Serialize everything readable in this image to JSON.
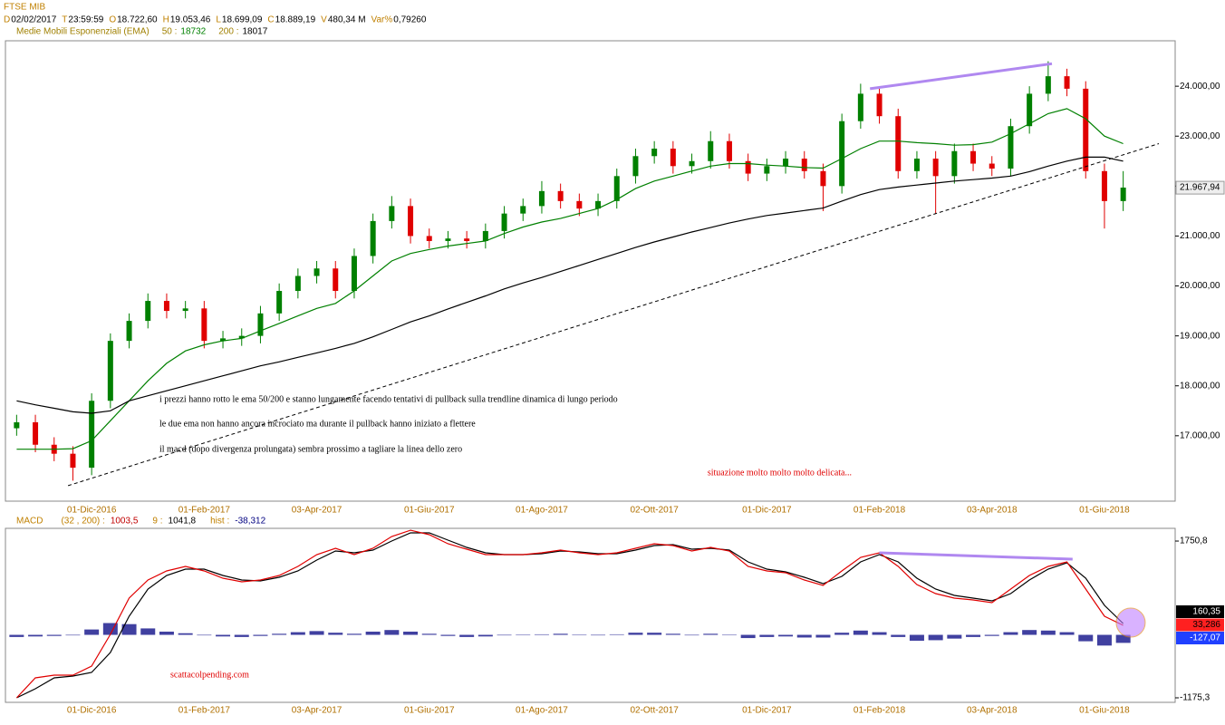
{
  "header": {
    "title": "FTSE MIB",
    "fields": [
      {
        "label": "D",
        "value": "02/02/2017"
      },
      {
        "label": "T",
        "value": "23:59:59"
      },
      {
        "label": "O",
        "value": "18.722,60"
      },
      {
        "label": "H",
        "value": "19.053,46"
      },
      {
        "label": "L",
        "value": "18.699,09"
      },
      {
        "label": "C",
        "value": "18.889,19"
      },
      {
        "label": "V",
        "value": "480,34 M"
      },
      {
        "label": "Var%",
        "value": "0,79260"
      }
    ],
    "ema": {
      "label": "Medie Mobili Esponenziali (EMA)",
      "items": [
        {
          "label": "50 :",
          "value": "18732",
          "color": "#008000"
        },
        {
          "label": "200 :",
          "value": "18017",
          "color": "#000000"
        }
      ]
    }
  },
  "chart_data": [
    {
      "type": "candlestick",
      "categories": [
        null,
        null,
        null,
        null,
        "01-Dic-2016",
        null,
        null,
        null,
        null,
        null,
        "01-Feb-2017",
        null,
        null,
        null,
        null,
        null,
        "03-Apr-2017",
        null,
        null,
        null,
        null,
        null,
        "01-Giu-2017",
        null,
        null,
        null,
        null,
        null,
        "01-Ago-2017",
        null,
        null,
        null,
        null,
        null,
        "02-Ott-2017",
        null,
        null,
        null,
        null,
        null,
        "01-Dic-2017",
        null,
        null,
        null,
        null,
        null,
        "01-Feb-2018",
        null,
        null,
        null,
        null,
        null,
        "03-Apr-2018",
        null,
        null,
        null,
        null,
        null,
        "01-Giu-2018",
        null
      ],
      "open": [
        17150,
        17270,
        16820,
        16640,
        16360,
        17700,
        18900,
        19300,
        19700,
        19500,
        19550,
        18900,
        18950,
        19000,
        19450,
        19900,
        20200,
        20350,
        19900,
        20600,
        21300,
        21600,
        21000,
        20900,
        20950,
        20900,
        21100,
        21450,
        21600,
        21900,
        21700,
        21550,
        21700,
        22200,
        22600,
        22750,
        22400,
        22500,
        22900,
        22500,
        22250,
        22400,
        22550,
        22300,
        22000,
        23300,
        23850,
        23400,
        22300,
        22550,
        22200,
        22700,
        22450,
        22350,
        23200,
        23850,
        24200,
        23950,
        22300,
        21700
      ],
      "high": [
        17420,
        17420,
        16970,
        16790,
        17850,
        19050,
        19450,
        19850,
        19850,
        19700,
        19700,
        19100,
        19150,
        19600,
        20050,
        20350,
        20500,
        20500,
        20750,
        21450,
        21800,
        21750,
        21150,
        21100,
        21100,
        21250,
        21600,
        21750,
        22100,
        22050,
        21850,
        21850,
        22350,
        22750,
        22900,
        22900,
        22650,
        23100,
        23050,
        22650,
        22550,
        22700,
        22700,
        22450,
        23450,
        24050,
        24000,
        23550,
        22700,
        22700,
        22850,
        22850,
        22600,
        23350,
        24000,
        24500,
        24350,
        24100,
        22450,
        22300
      ],
      "low": [
        17000,
        16670,
        16490,
        16100,
        16210,
        17550,
        18750,
        19150,
        19350,
        19350,
        18750,
        18750,
        18800,
        18850,
        19300,
        19750,
        20050,
        19750,
        19750,
        20450,
        21150,
        20850,
        20750,
        20750,
        20750,
        20750,
        20950,
        21300,
        21450,
        21550,
        21400,
        21400,
        21550,
        22050,
        22450,
        22250,
        22250,
        22350,
        22350,
        22100,
        22100,
        22250,
        22150,
        21500,
        21850,
        23150,
        23250,
        22150,
        22150,
        21450,
        22050,
        22300,
        22200,
        22200,
        23050,
        23700,
        23800,
        22150,
        21150,
        21500
      ],
      "close": [
        17270,
        16820,
        16640,
        16360,
        17700,
        18900,
        19300,
        19700,
        19500,
        19550,
        18900,
        18950,
        19000,
        19450,
        19900,
        20200,
        20350,
        19900,
        20600,
        21300,
        21600,
        21000,
        20900,
        20950,
        20900,
        21100,
        21450,
        21600,
        21900,
        21700,
        21550,
        21700,
        22200,
        22600,
        22750,
        22400,
        22500,
        22900,
        22500,
        22250,
        22400,
        22550,
        22300,
        22000,
        23300,
        23850,
        23400,
        22300,
        22550,
        22200,
        22700,
        22450,
        22350,
        23200,
        23850,
        24200,
        23950,
        22300,
        21700,
        21970
      ],
      "up_color": "#008000",
      "down_color": "#e00000",
      "series": [
        {
          "color": "#008000",
          "values": [
            16730,
            16730,
            16730,
            16740,
            16900,
            17300,
            17700,
            18100,
            18450,
            18700,
            18820,
            18900,
            18950,
            19100,
            19250,
            19400,
            19550,
            19650,
            19900,
            20200,
            20500,
            20650,
            20730,
            20800,
            20850,
            20900,
            21050,
            21180,
            21280,
            21350,
            21450,
            21550,
            21730,
            21950,
            22100,
            22200,
            22300,
            22400,
            22450,
            22450,
            22420,
            22400,
            22370,
            22360,
            22550,
            22750,
            22900,
            22900,
            22870,
            22850,
            22820,
            22830,
            22880,
            23050,
            23250,
            23450,
            23550,
            23350,
            23000,
            22850
          ]
        },
        {
          "color": "#000000",
          "values": [
            17700,
            17620,
            17550,
            17480,
            17450,
            17500,
            17700,
            17800,
            17900,
            18000,
            18100,
            18200,
            18300,
            18400,
            18480,
            18570,
            18660,
            18750,
            18850,
            18980,
            19130,
            19280,
            19400,
            19540,
            19670,
            19800,
            19940,
            20060,
            20170,
            20290,
            20410,
            20530,
            20650,
            20770,
            20880,
            20980,
            21080,
            21170,
            21260,
            21340,
            21410,
            21460,
            21510,
            21560,
            21700,
            21830,
            21930,
            21980,
            22020,
            22060,
            22100,
            22130,
            22160,
            22200,
            22290,
            22400,
            22500,
            22580,
            22580,
            22500
          ]
        }
      ],
      "lines": [
        {
          "x": [
            2.74,
            60.9
          ],
          "values": [
            16000,
            22850
          ],
          "color": "#000000",
          "dashed": true
        },
        {
          "x": [
            45.5,
            55.2
          ],
          "values": [
            23950,
            24450
          ],
          "color": "#b088f0",
          "dashed": false
        }
      ],
      "last_price": {
        "value": 21967.94,
        "label": "21.967,94"
      },
      "ylim": [
        15690,
        24910
      ],
      "yticks": [
        {
          "value": 17000,
          "label": "17.000,00"
        },
        {
          "value": 18000,
          "label": "18.000,00"
        },
        {
          "value": 19000,
          "label": "19.000,00"
        },
        {
          "value": 20000,
          "label": "20.000,00"
        },
        {
          "value": 21000,
          "label": "21.000,00"
        },
        {
          "value": 22000,
          "label": "22.000,00"
        },
        {
          "value": 23000,
          "label": "23.000,00"
        },
        {
          "value": 24000,
          "label": "24.000,00"
        }
      ],
      "annotations": [
        {
          "text": "i prezzi hanno rotto le ema 50/200 e stanno lungamente facendo tentativi di pullback sulla trendline dinamica di lungo periodo",
          "color": "#000000"
        },
        {
          "text": "le due ema non hanno ancora incrociato ma durante il pullback hanno iniziato a flettere",
          "color": "#000000"
        },
        {
          "text": "il macd (dopo divergenza prolungata) sembra prossimo a tagliare la linea dello zero",
          "color": "#000000"
        },
        {
          "text": "situazione molto molto molto delicata...",
          "color": "#e00000"
        }
      ]
    },
    {
      "type": "line",
      "title": "MACD",
      "header_fields": [
        {
          "label": "(32 , 200) :",
          "value": "1003,5",
          "color": "#c00000"
        },
        {
          "label": "9 :",
          "value": "1041,8",
          "color": "#000000"
        },
        {
          "label": "hist :",
          "value": "-38,312",
          "color": "#000080"
        }
      ],
      "categories": [
        null,
        null,
        null,
        null,
        "01-Dic-2016",
        null,
        null,
        null,
        null,
        null,
        "01-Feb-2017",
        null,
        null,
        null,
        null,
        null,
        "03-Apr-2017",
        null,
        null,
        null,
        null,
        null,
        "01-Giu-2017",
        null,
        null,
        null,
        null,
        null,
        "01-Ago-2017",
        null,
        null,
        null,
        null,
        null,
        "02-Ott-2017",
        null,
        null,
        null,
        null,
        null,
        "01-Dic-2017",
        null,
        null,
        null,
        null,
        null,
        "01-Feb-2018",
        null,
        null,
        null,
        null,
        null,
        "03-Apr-2018",
        null,
        null,
        null,
        null,
        null,
        "01-Giu-2018",
        null
      ],
      "series": [
        {
          "type": "bar",
          "color": "#000080",
          "values": [
            -40,
            -30,
            -20,
            -10,
            100,
            220,
            200,
            120,
            60,
            30,
            -10,
            -30,
            -40,
            -20,
            20,
            50,
            70,
            40,
            20,
            60,
            90,
            60,
            20,
            -20,
            -40,
            -30,
            -10,
            0,
            10,
            20,
            0,
            -10,
            10,
            40,
            40,
            20,
            -10,
            20,
            0,
            -60,
            -40,
            -30,
            -50,
            -50,
            40,
            80,
            50,
            -40,
            -110,
            -100,
            -70,
            -40,
            -20,
            50,
            90,
            80,
            50,
            -120,
            -200,
            -150
          ]
        },
        {
          "type": "line",
          "color": "#000000",
          "values": [
            -1176,
            -1007,
            -803,
            -770,
            -702,
            -330,
            347,
            854,
            1108,
            1226,
            1226,
            1108,
            1023,
            1007,
            1074,
            1193,
            1396,
            1565,
            1531,
            1582,
            1751,
            1903,
            1903,
            1768,
            1632,
            1531,
            1497,
            1497,
            1514,
            1565,
            1548,
            1514,
            1514,
            1582,
            1666,
            1683,
            1599,
            1615,
            1582,
            1362,
            1226,
            1176,
            1074,
            956,
            1091,
            1362,
            1497,
            1362,
            1057,
            854,
            736,
            685,
            634,
            770,
            1023,
            1226,
            1345,
            1057,
            550,
            211
          ]
        },
        {
          "type": "line",
          "color": "#e00000",
          "values": [
            -1175,
            -803,
            -753,
            -753,
            -584,
            9,
            685,
            1023,
            1193,
            1277,
            1193,
            1057,
            990,
            1023,
            1108,
            1277,
            1497,
            1615,
            1497,
            1615,
            1835,
            1953,
            1869,
            1700,
            1599,
            1497,
            1497,
            1497,
            1531,
            1582,
            1531,
            1497,
            1531,
            1615,
            1700,
            1666,
            1565,
            1632,
            1565,
            1277,
            1193,
            1159,
            1023,
            922,
            1193,
            1446,
            1531,
            1277,
            939,
            770,
            685,
            651,
            601,
            854,
            1108,
            1277,
            1362,
            854,
            347,
            178
          ]
        }
      ],
      "lines": [
        {
          "x": [
            46,
            56.3
          ],
          "values": [
            1531,
            1413
          ],
          "color": "#b088f0",
          "dashed": false
        }
      ],
      "highlight": {
        "x": 59.4,
        "value": 228,
        "color": "#c080ff"
      },
      "badges": [
        {
          "label": "160,35",
          "color": "#000000",
          "text_color": "#ffffff"
        },
        {
          "label": "33,286",
          "color": "#ff2020",
          "text_color": "#000000"
        },
        {
          "label": "-127,07",
          "color": "#2040ff",
          "text_color": "#ffffff"
        }
      ],
      "watermark": "scattacolpending.com",
      "ylim": [
        -1260,
        1988
      ],
      "yticks": [
        {
          "value": 1750.8,
          "label": "1750,8"
        },
        {
          "value": -1175.3,
          "label": "-1175,3"
        }
      ]
    }
  ]
}
